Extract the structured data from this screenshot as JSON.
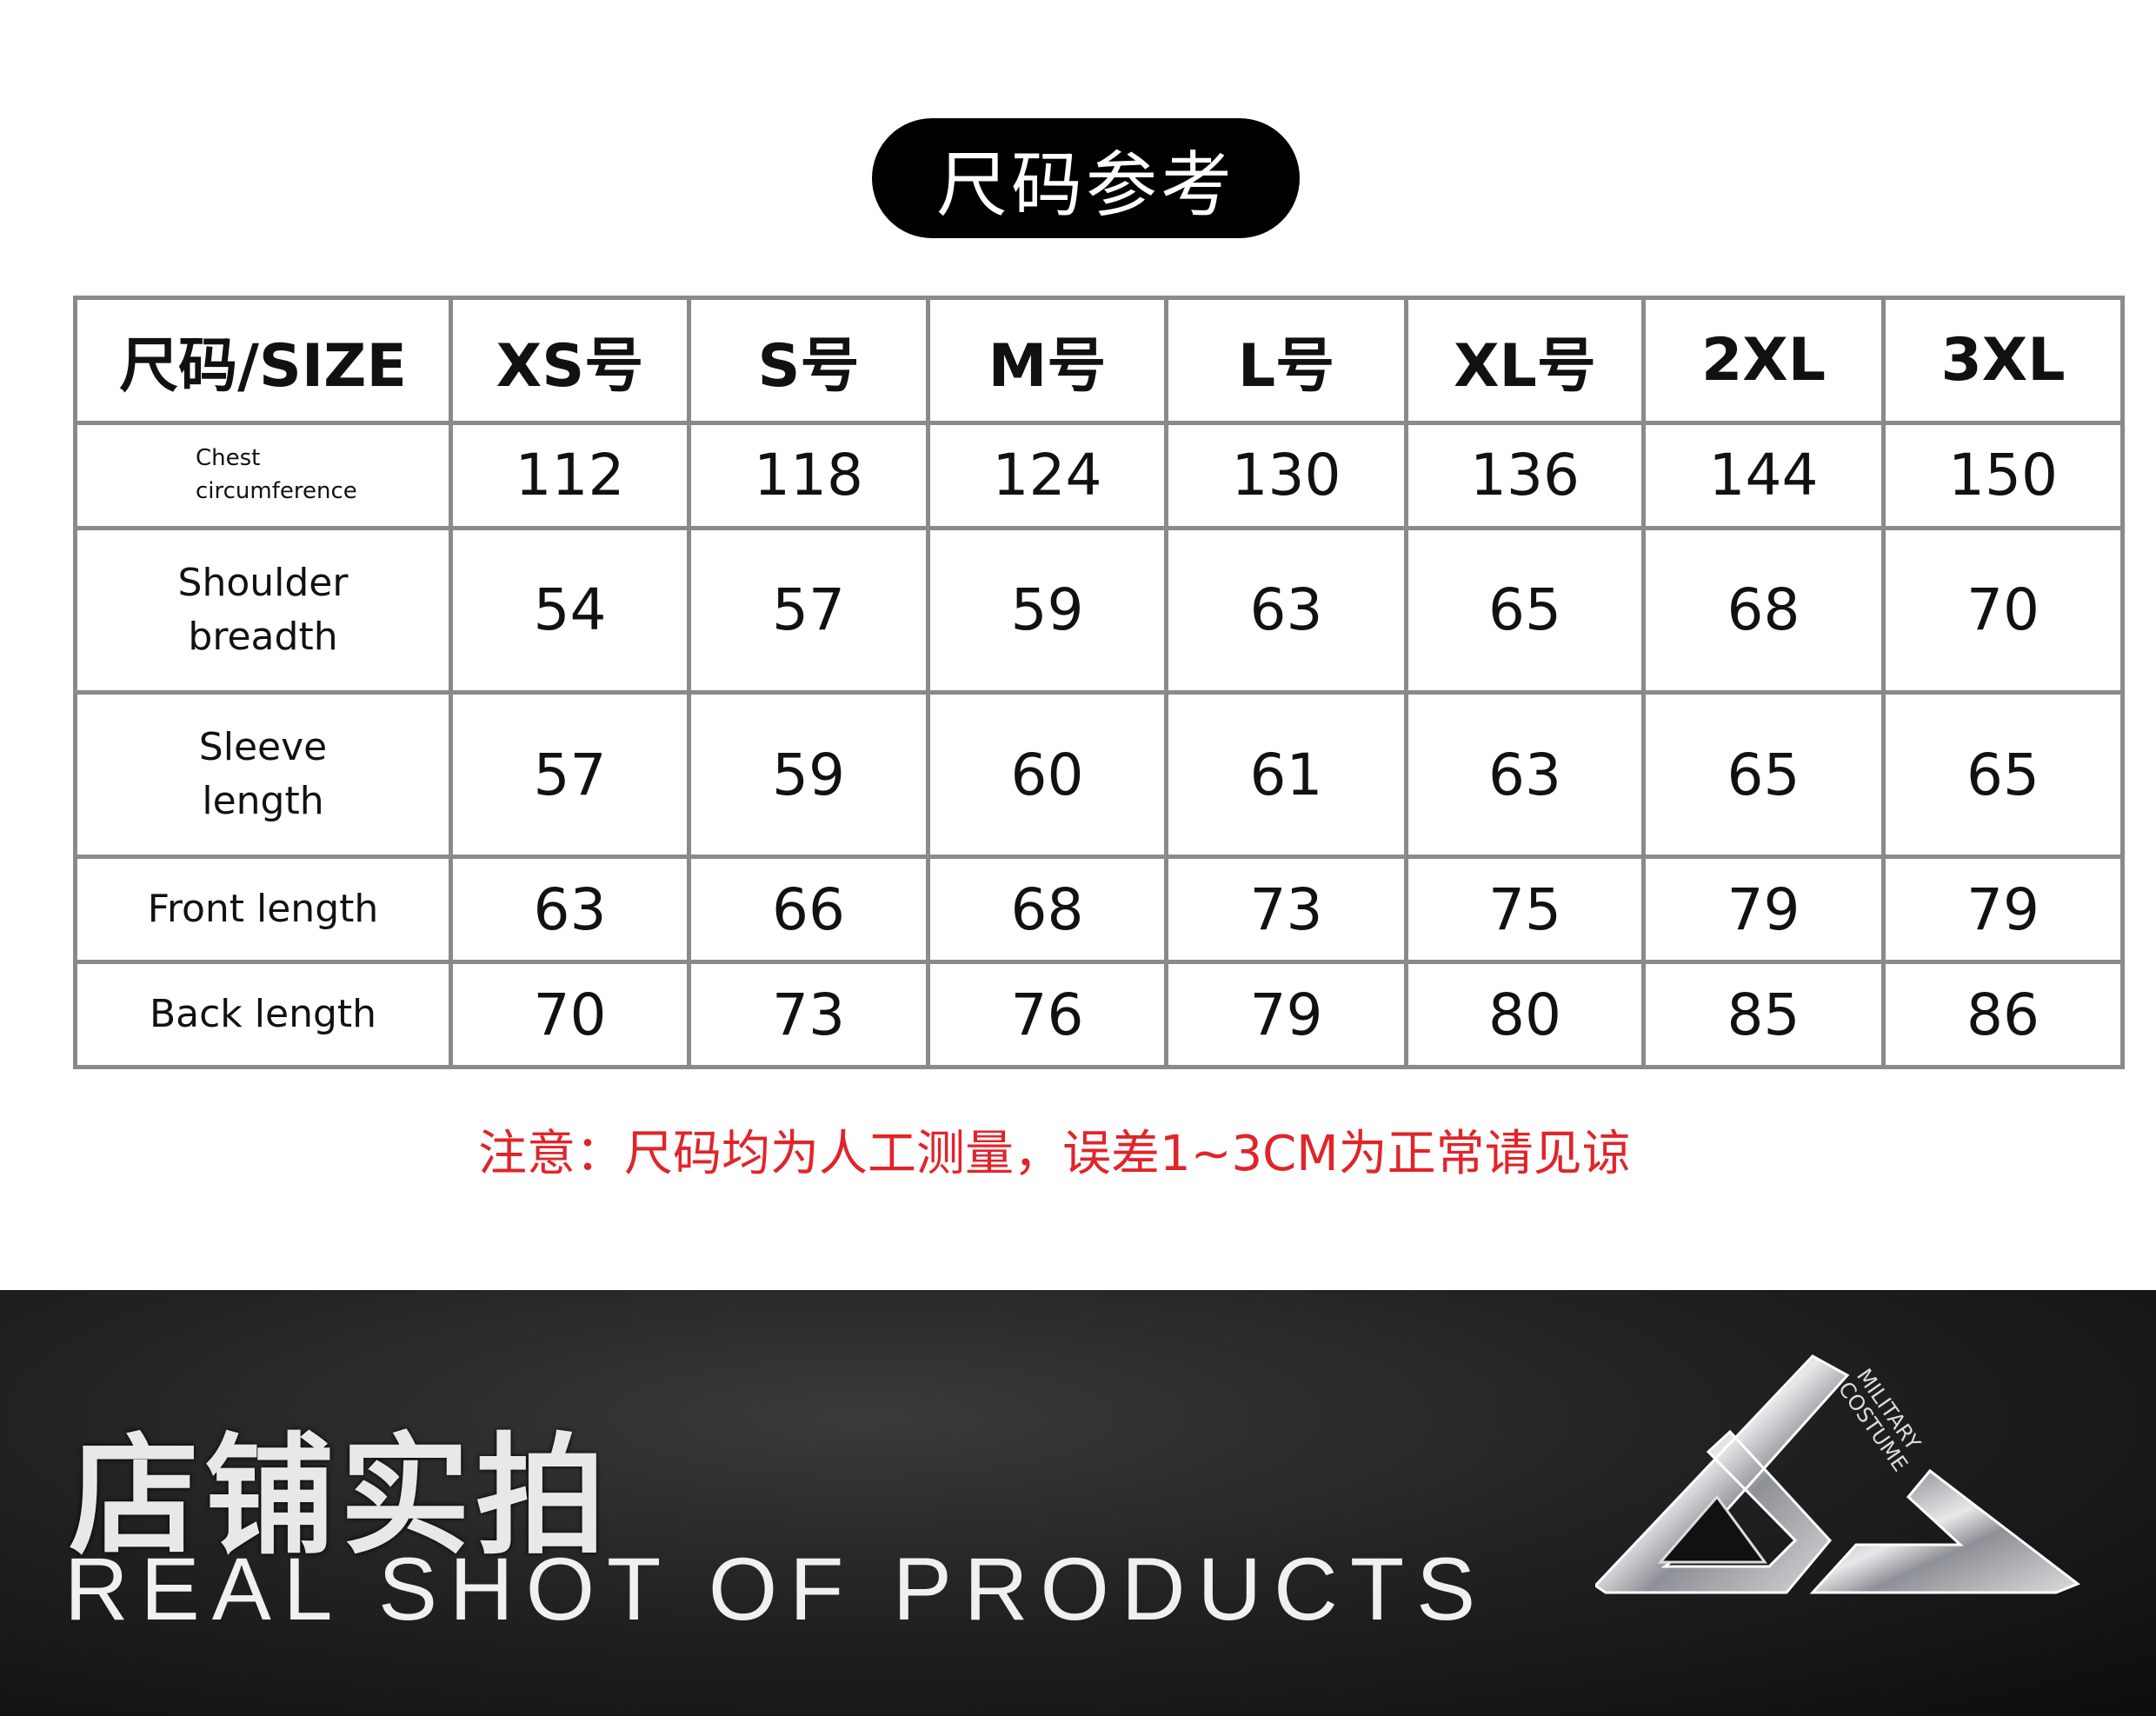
{
  "title": "尺码参考",
  "table": {
    "headers": [
      "尺码/SIZE",
      "XS号",
      "S号",
      "M号",
      "L号",
      "XL号",
      "2XL",
      "3XL"
    ],
    "rows": [
      {
        "label": [
          "Chest",
          "circumference"
        ],
        "values": [
          "112",
          "118",
          "124",
          "130",
          "136",
          "144",
          "150"
        ]
      },
      {
        "label": [
          "Shoulder",
          "breadth"
        ],
        "values": [
          "54",
          "57",
          "59",
          "63",
          "65",
          "68",
          "70"
        ]
      },
      {
        "label": [
          "Sleeve",
          "length"
        ],
        "values": [
          "57",
          "59",
          "60",
          "61",
          "63",
          "65",
          "65"
        ]
      },
      {
        "label": [
          "Front length"
        ],
        "values": [
          "63",
          "66",
          "68",
          "73",
          "75",
          "79",
          "79"
        ]
      },
      {
        "label": [
          "Back length"
        ],
        "values": [
          "70",
          "73",
          "76",
          "79",
          "80",
          "85",
          "86"
        ]
      }
    ]
  },
  "note": "注意：尺码均为人工测量，误差1~3CM为正常请见谅",
  "banner": {
    "title_cn": "店铺实拍",
    "title_en": "REAL SHOT OF PRODUCTS",
    "logo_text": [
      "MILITARY",
      "COSTUME"
    ]
  },
  "colors": {
    "note": "#e0252a",
    "pill": "#000000",
    "border": "#8a8a8a"
  }
}
